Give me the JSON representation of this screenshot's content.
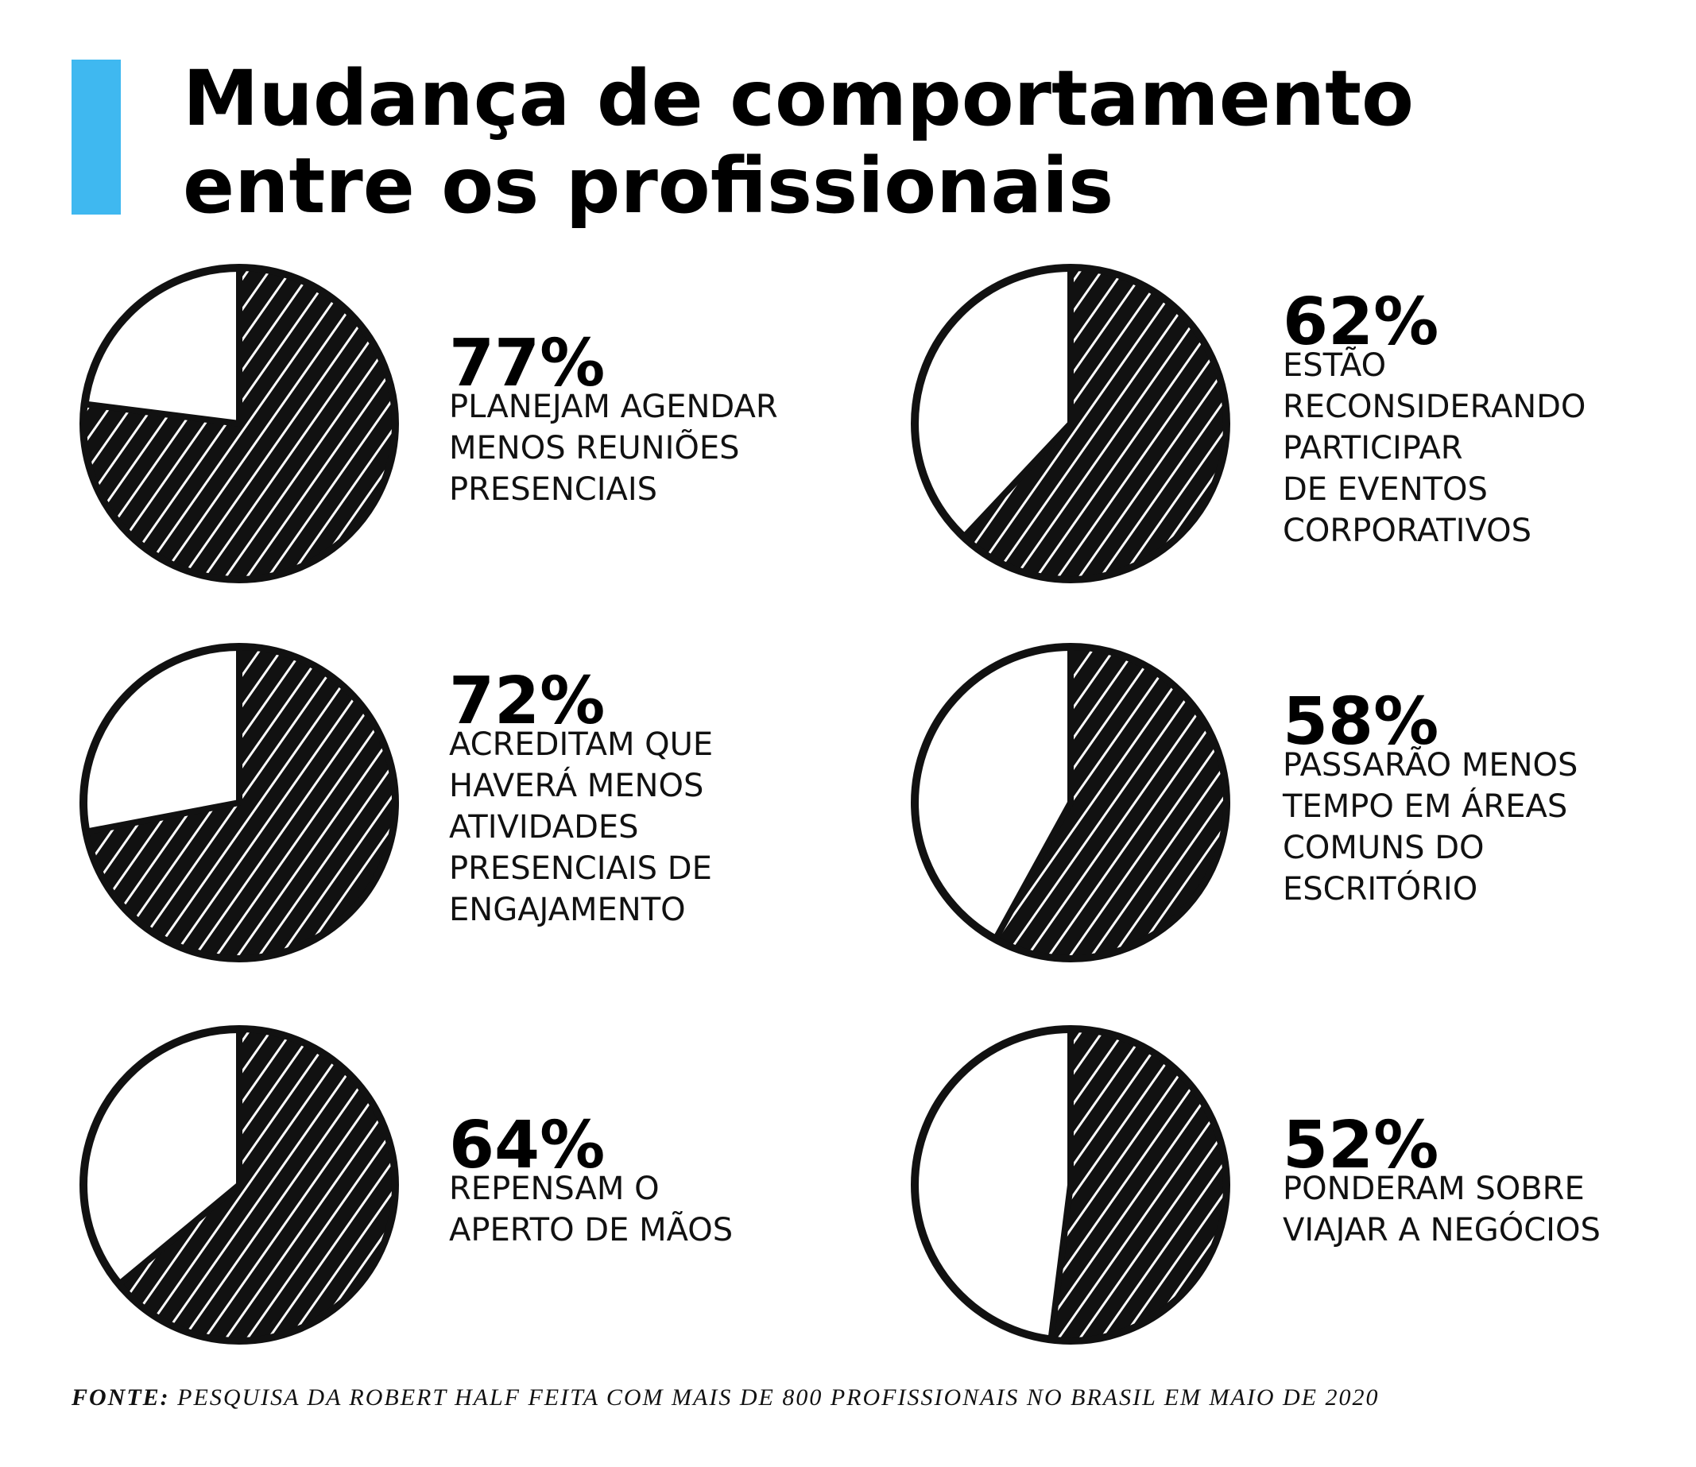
{
  "title": [
    "Mudança de comportamento",
    "entre os profissionais"
  ],
  "source": {
    "label": "FONTE:",
    "text": "PESQUISA DA ROBERT HALF FEITA COM MAIS DE 800 PROFISSIONAIS NO BRASIL EM MAIO DE 2020"
  },
  "chart_data": [
    {
      "type": "pie",
      "values": [
        77
      ],
      "value_labels": [
        "77%"
      ],
      "color": "#111111",
      "description": [
        "PLANEJAM AGENDAR",
        "MENOS REUNIÕES",
        "PRESENCIAIS"
      ]
    },
    {
      "type": "pie",
      "values": [
        62
      ],
      "value_labels": [
        "62%"
      ],
      "color": "#111111",
      "description": [
        "ESTÃO",
        "RECONSIDERANDO",
        "PARTICIPAR",
        "DE EVENTOS",
        "CORPORATIVOS"
      ]
    },
    {
      "type": "pie",
      "values": [
        72
      ],
      "value_labels": [
        "72%"
      ],
      "color": "#111111",
      "description": [
        "ACREDITAM QUE",
        "HAVERÁ MENOS",
        "ATIVIDADES",
        "PRESENCIAIS DE",
        "ENGAJAMENTO"
      ]
    },
    {
      "type": "pie",
      "values": [
        58
      ],
      "value_labels": [
        "58%"
      ],
      "color": "#111111",
      "description": [
        "PASSARÃO MENOS",
        "TEMPO EM ÁREAS",
        "COMUNS DO",
        "ESCRITÓRIO"
      ]
    },
    {
      "type": "pie",
      "values": [
        64
      ],
      "value_labels": [
        "64%"
      ],
      "color": "#111111",
      "description": [
        "REPENSAM O",
        "APERTO DE MÃOS"
      ]
    },
    {
      "type": "pie",
      "values": [
        52
      ],
      "value_labels": [
        "52%"
      ],
      "color": "#111111",
      "description": [
        "PONDERAM SOBRE",
        "VIAJAR A NEGÓCIOS"
      ]
    }
  ]
}
